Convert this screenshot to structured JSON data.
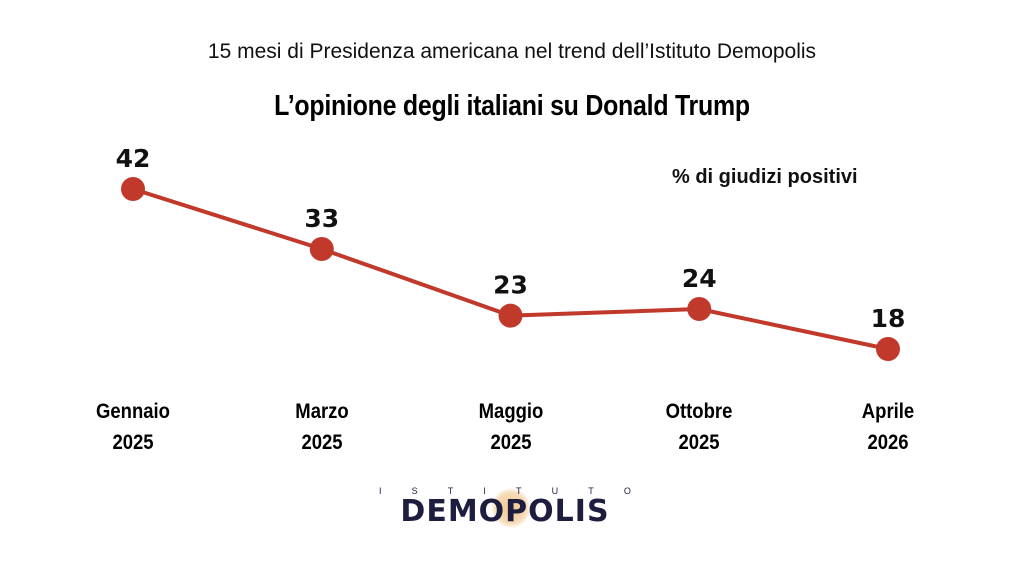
{
  "header": {
    "subtitle": "15 mesi di Presidenza americana nel trend dell’Istituto Demopolis",
    "title": "L’opinione degli italiani su Donald Trump"
  },
  "logo": {
    "top_letters": [
      "I",
      "S",
      "T",
      "I",
      "T",
      "U",
      "T",
      "O"
    ],
    "name": "DEMOPOLIS"
  },
  "chart_data": {
    "type": "line",
    "title": "L’opinione degli italiani su Donald Trump",
    "subtitle": "15 mesi di Presidenza americana nel trend dell’Istituto Demopolis",
    "ylabel": "% di giudizi positivi",
    "xlabel": "",
    "categories": [
      {
        "line1": "Gennaio",
        "line2": "2025"
      },
      {
        "line1": "Marzo",
        "line2": "2025"
      },
      {
        "line1": "Maggio",
        "line2": "2025"
      },
      {
        "line1": "Ottobre",
        "line2": "2025"
      },
      {
        "line1": "Aprile",
        "line2": "2026"
      }
    ],
    "series": [
      {
        "name": "% di giudizi positivi",
        "values": [
          42,
          33,
          23,
          24,
          18
        ],
        "color": "#c0392b"
      }
    ],
    "data_labels": [
      "42",
      "33",
      "23",
      "24",
      "18"
    ],
    "ylim": [
      18,
      42
    ],
    "grid": false,
    "legend": "none"
  }
}
